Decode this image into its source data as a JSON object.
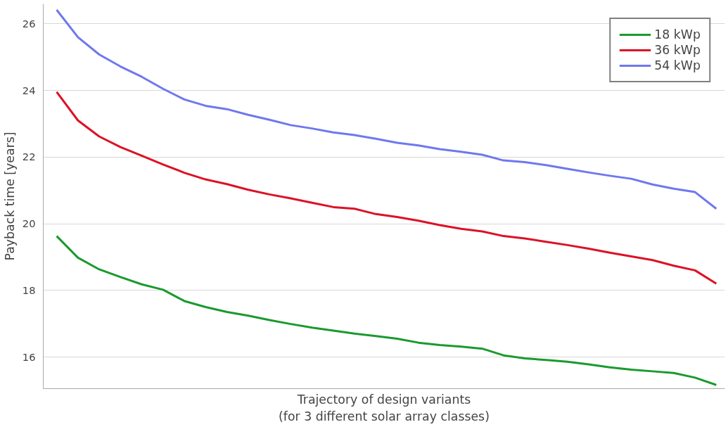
{
  "chart_data": {
    "type": "line",
    "xlabel": "Trajectory of design variants\n(for 3 different solar array classes)",
    "ylabel": "Payback time [years]",
    "categories": [
      null,
      null,
      null,
      null,
      null,
      null,
      null,
      null,
      null,
      null,
      null,
      null,
      null,
      null,
      null,
      null,
      null,
      null,
      null,
      null,
      null,
      null,
      null,
      null,
      null,
      null,
      null,
      null,
      null,
      null,
      null,
      null
    ],
    "series": [
      {
        "name": "18 kWp",
        "color": "#1a9a2e",
        "values": [
          19.63,
          18.98,
          18.63,
          18.4,
          18.18,
          18.02,
          17.68,
          17.5,
          17.35,
          17.24,
          17.11,
          16.99,
          16.88,
          16.79,
          16.7,
          16.63,
          16.55,
          16.43,
          16.36,
          16.31,
          16.25,
          16.05,
          15.96,
          15.91,
          15.86,
          15.78,
          15.69,
          15.62,
          15.57,
          15.52,
          15.38,
          15.16
        ]
      },
      {
        "name": "36 kWp",
        "color": "#dd1126",
        "values": [
          23.96,
          23.1,
          22.62,
          22.3,
          22.04,
          21.78,
          21.53,
          21.33,
          21.19,
          21.02,
          20.88,
          20.76,
          20.63,
          20.5,
          20.45,
          20.29,
          20.2,
          20.09,
          19.96,
          19.85,
          19.77,
          19.63,
          19.56,
          19.46,
          19.36,
          19.25,
          19.13,
          19.02,
          18.91,
          18.74,
          18.6,
          18.2
        ]
      },
      {
        "name": "54 kWp",
        "color": "#6f78ee",
        "values": [
          26.42,
          25.6,
          25.08,
          24.72,
          24.41,
          24.05,
          23.73,
          23.54,
          23.44,
          23.27,
          23.12,
          22.96,
          22.86,
          22.74,
          22.66,
          22.55,
          22.43,
          22.35,
          22.24,
          22.16,
          22.07,
          21.9,
          21.85,
          21.76,
          21.65,
          21.54,
          21.44,
          21.35,
          21.18,
          21.05,
          20.95,
          20.45
        ]
      }
    ],
    "ylim": [
      15.05,
      26.6
    ],
    "yticks": [
      16,
      18,
      20,
      22,
      24,
      26
    ],
    "grid": "y",
    "legend": "top right",
    "tick_labels": "y",
    "marker": "none",
    "line_style": "solid"
  }
}
